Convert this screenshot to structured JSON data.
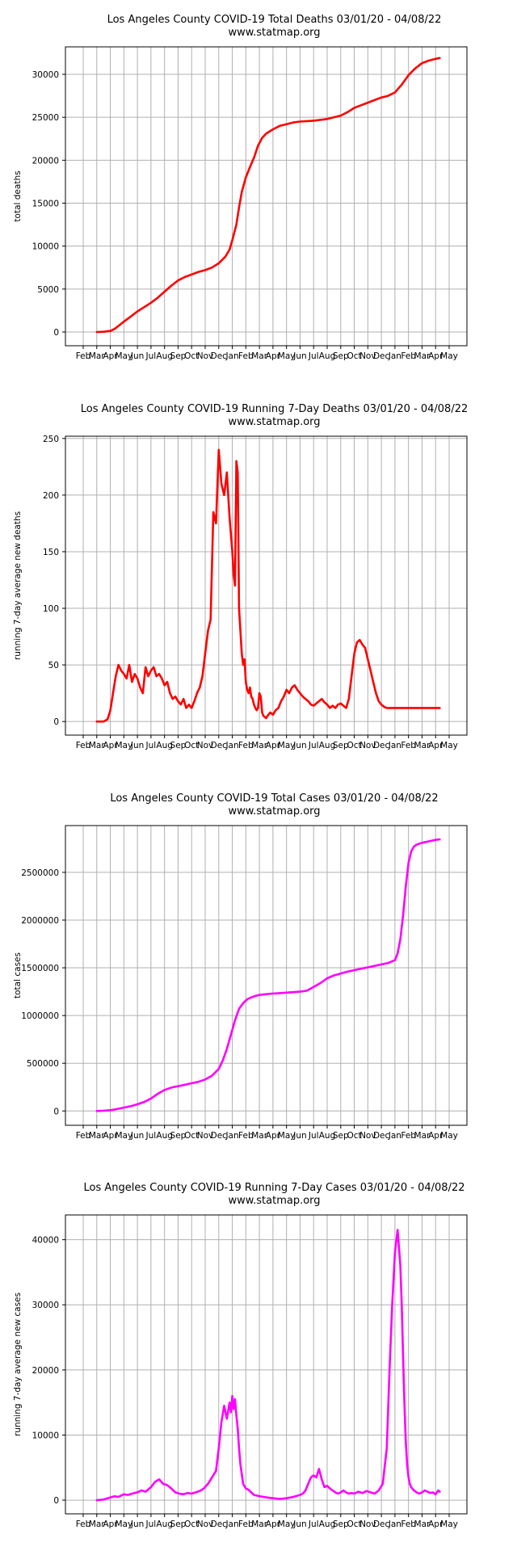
{
  "chart_data": [
    {
      "type": "line",
      "title": "Los Angeles County COVID-19 Total Deaths 03/01/20 - 04/08/22",
      "subtitle": "www.statmap.org",
      "xlabel": "",
      "ylabel": "total deaths",
      "x_tick_labels": [
        "Feb",
        "Mar",
        "Apr",
        "May",
        "Jun",
        "Jul",
        "Aug",
        "Sep",
        "Oct",
        "Nov",
        "Dec",
        "Jan",
        "Feb",
        "Mar",
        "Apr",
        "May",
        "Jun",
        "Jul",
        "Aug",
        "Sep",
        "Oct",
        "Nov",
        "Dec",
        "Jan",
        "Feb",
        "Mar",
        "Apr",
        "May"
      ],
      "x_range_months": [
        0,
        27
      ],
      "yticks": [
        0,
        5000,
        10000,
        15000,
        20000,
        25000,
        30000
      ],
      "ylim": [
        -1600,
        33200
      ],
      "grid": true,
      "color": "#ff0000",
      "series": [
        {
          "x_months": [
            1.0,
            1.5,
            2.0,
            2.3,
            2.6,
            3.0,
            3.5,
            4.0,
            4.5,
            5.0,
            5.5,
            6.0,
            6.5,
            7.0,
            7.5,
            8.0,
            8.5,
            9.0,
            9.5,
            10.0,
            10.5,
            10.8,
            11.0,
            11.3,
            11.5,
            11.7,
            12.0,
            12.3,
            12.6,
            12.9,
            13.2,
            13.5,
            14.0,
            14.5,
            15.0,
            15.5,
            16.0,
            17.0,
            18.0,
            19.0,
            19.5,
            20.0,
            20.5,
            21.0,
            21.5,
            22.0,
            22.5,
            23.0,
            23.5,
            24.0,
            24.5,
            25.0,
            25.5,
            26.0,
            26.3
          ],
          "values": [
            0,
            30,
            120,
            350,
            700,
            1200,
            1800,
            2400,
            2900,
            3400,
            4000,
            4700,
            5400,
            6000,
            6400,
            6700,
            7000,
            7200,
            7500,
            8000,
            8800,
            9600,
            10700,
            12500,
            14500,
            16300,
            18000,
            19200,
            20300,
            21700,
            22600,
            23100,
            23600,
            24000,
            24200,
            24400,
            24500,
            24600,
            24800,
            25200,
            25600,
            26100,
            26400,
            26700,
            27000,
            27300,
            27500,
            27900,
            28800,
            29900,
            30700,
            31300,
            31600,
            31800,
            31900
          ]
        }
      ]
    },
    {
      "type": "line",
      "title": "Los Angeles County COVID-19 Running 7-Day Deaths 03/01/20 - 04/08/22",
      "subtitle": "www.statmap.org",
      "xlabel": "",
      "ylabel": "running 7-day average new deaths",
      "x_tick_labels": [
        "Feb",
        "Mar",
        "Apr",
        "May",
        "Jun",
        "Jul",
        "Aug",
        "Sep",
        "Oct",
        "Nov",
        "Dec",
        "Jan",
        "Feb",
        "Mar",
        "Apr",
        "May",
        "Jun",
        "Jul",
        "Aug",
        "Sep",
        "Oct",
        "Nov",
        "Dec",
        "Jan",
        "Feb",
        "Mar",
        "Apr",
        "May"
      ],
      "x_range_months": [
        0,
        27
      ],
      "yticks": [
        0,
        50,
        100,
        150,
        200,
        250
      ],
      "ylim": [
        -12,
        252
      ],
      "grid": true,
      "color": "#ff0000",
      "series": [
        {
          "x_months": [
            1.0,
            1.5,
            1.8,
            2.0,
            2.2,
            2.4,
            2.6,
            2.8,
            3.0,
            3.2,
            3.4,
            3.6,
            3.8,
            4.0,
            4.2,
            4.4,
            4.6,
            4.8,
            5.0,
            5.2,
            5.4,
            5.6,
            5.8,
            6.0,
            6.2,
            6.4,
            6.6,
            6.8,
            7.0,
            7.2,
            7.4,
            7.6,
            7.8,
            8.0,
            8.2,
            8.4,
            8.6,
            8.8,
            9.0,
            9.2,
            9.4,
            9.6,
            9.8,
            10.0,
            10.2,
            10.4,
            10.6,
            10.8,
            11.0,
            11.1,
            11.2,
            11.3,
            11.4,
            11.5,
            11.6,
            11.7,
            11.8,
            11.9,
            12.0,
            12.1,
            12.2,
            12.3,
            12.4,
            12.5,
            12.6,
            12.7,
            12.8,
            12.9,
            13.0,
            13.1,
            13.2,
            13.3,
            13.4,
            13.5,
            13.6,
            13.8,
            14.0,
            14.2,
            14.4,
            14.6,
            14.8,
            15.0,
            15.2,
            15.4,
            15.6,
            15.8,
            16.0,
            16.2,
            16.4,
            16.6,
            16.8,
            17.0,
            17.2,
            17.4,
            17.6,
            17.8,
            18.0,
            18.2,
            18.4,
            18.6,
            18.8,
            19.0,
            19.2,
            19.4,
            19.6,
            19.8,
            20.0,
            20.2,
            20.4,
            20.6,
            20.8,
            21.0,
            21.2,
            21.4,
            21.6,
            21.8,
            22.0,
            22.2,
            22.4,
            22.6,
            22.8,
            23.0,
            23.2,
            23.4,
            23.6,
            23.8,
            24.0,
            24.2,
            24.4,
            24.6,
            24.8,
            25.0,
            25.2,
            25.4,
            25.6,
            25.8,
            26.0,
            26.2,
            26.3
          ],
          "values": [
            0,
            0,
            2,
            10,
            25,
            40,
            50,
            45,
            42,
            38,
            50,
            35,
            42,
            38,
            30,
            25,
            48,
            40,
            45,
            48,
            40,
            42,
            38,
            32,
            35,
            25,
            20,
            22,
            18,
            15,
            20,
            12,
            15,
            12,
            18,
            25,
            30,
            40,
            60,
            80,
            90,
            185,
            175,
            240,
            210,
            200,
            220,
            180,
            150,
            130,
            120,
            230,
            220,
            100,
            80,
            60,
            50,
            55,
            35,
            28,
            25,
            30,
            22,
            20,
            15,
            12,
            10,
            12,
            25,
            22,
            8,
            5,
            4,
            3,
            5,
            8,
            6,
            10,
            12,
            18,
            22,
            28,
            25,
            30,
            32,
            28,
            25,
            22,
            20,
            18,
            15,
            14,
            16,
            18,
            20,
            17,
            15,
            12,
            14,
            12,
            15,
            16,
            14,
            12,
            20,
            40,
            60,
            70,
            72,
            68,
            65,
            55,
            45,
            35,
            25,
            18,
            15,
            13,
            12,
            12,
            12,
            12,
            12,
            12,
            12,
            12,
            12,
            12,
            12,
            12,
            12,
            12,
            12,
            12,
            12,
            12,
            12,
            12,
            12
          ]
        }
      ]
    },
    {
      "type": "line",
      "title": "Los Angeles County COVID-19 Total Cases 03/01/20 - 04/08/22",
      "subtitle": "www.statmap.org",
      "xlabel": "",
      "ylabel": "total cases",
      "x_tick_labels": [
        "Feb",
        "Mar",
        "Apr",
        "May",
        "Jun",
        "Jul",
        "Aug",
        "Sep",
        "Oct",
        "Nov",
        "Dec",
        "Jan",
        "Feb",
        "Mar",
        "Apr",
        "May",
        "Jun",
        "Jul",
        "Aug",
        "Sep",
        "Oct",
        "Nov",
        "Dec",
        "Jan",
        "Feb",
        "Mar",
        "Apr",
        "May"
      ],
      "x_range_months": [
        0,
        27
      ],
      "yticks": [
        0,
        500000,
        1000000,
        1500000,
        2000000,
        2500000
      ],
      "yticklabels": [
        "0",
        "500000",
        "1000000",
        "1500000",
        "2000000",
        "2500000"
      ],
      "ylim": [
        -150000,
        2990000
      ],
      "grid": true,
      "color": "#ff00ff",
      "series": [
        {
          "x_months": [
            1.0,
            1.5,
            2.0,
            2.5,
            3.0,
            3.5,
            4.0,
            4.5,
            5.0,
            5.5,
            6.0,
            6.5,
            7.0,
            7.5,
            8.0,
            8.5,
            9.0,
            9.5,
            10.0,
            10.3,
            10.6,
            10.9,
            11.2,
            11.5,
            11.8,
            12.1,
            12.4,
            12.7,
            13.0,
            13.3,
            13.6,
            14.0,
            14.5,
            15.0,
            15.5,
            16.0,
            16.5,
            17.0,
            17.5,
            18.0,
            18.5,
            19.0,
            19.5,
            20.0,
            20.5,
            21.0,
            21.5,
            22.0,
            22.5,
            23.0,
            23.2,
            23.4,
            23.6,
            23.8,
            24.0,
            24.2,
            24.4,
            24.6,
            24.8,
            25.0,
            25.5,
            26.0,
            26.3
          ],
          "values": [
            0,
            2000,
            8000,
            20000,
            35000,
            50000,
            70000,
            95000,
            130000,
            180000,
            220000,
            245000,
            260000,
            275000,
            290000,
            305000,
            330000,
            370000,
            440000,
            530000,
            650000,
            800000,
            950000,
            1070000,
            1130000,
            1170000,
            1190000,
            1205000,
            1215000,
            1220000,
            1225000,
            1230000,
            1235000,
            1240000,
            1245000,
            1250000,
            1260000,
            1300000,
            1340000,
            1390000,
            1420000,
            1440000,
            1460000,
            1475000,
            1490000,
            1505000,
            1520000,
            1535000,
            1550000,
            1580000,
            1650000,
            1800000,
            2050000,
            2350000,
            2600000,
            2720000,
            2770000,
            2790000,
            2800000,
            2810000,
            2825000,
            2840000,
            2845000
          ]
        }
      ]
    },
    {
      "type": "line",
      "title": "Los Angeles County COVID-19 Running 7-Day Cases 03/01/20 - 04/08/22",
      "subtitle": "www.statmap.org",
      "xlabel": "",
      "ylabel": "running 7-day average new cases",
      "x_tick_labels": [
        "Feb",
        "Mar",
        "Apr",
        "May",
        "Jun",
        "Jul",
        "Aug",
        "Sep",
        "Oct",
        "Nov",
        "Dec",
        "Jan",
        "Feb",
        "Mar",
        "Apr",
        "May",
        "Jun",
        "Jul",
        "Aug",
        "Sep",
        "Oct",
        "Nov",
        "Dec",
        "Jan",
        "Feb",
        "Mar",
        "Apr",
        "May"
      ],
      "x_range_months": [
        0,
        27
      ],
      "yticks": [
        0,
        10000,
        20000,
        30000,
        40000
      ],
      "ylim": [
        -2100,
        43800
      ],
      "grid": true,
      "color": "#ff00ff",
      "series": [
        {
          "x_months": [
            1.0,
            1.5,
            2.0,
            2.3,
            2.6,
            3.0,
            3.3,
            3.6,
            4.0,
            4.3,
            4.6,
            5.0,
            5.3,
            5.6,
            5.9,
            6.2,
            6.5,
            6.8,
            7.1,
            7.4,
            7.7,
            8.0,
            8.3,
            8.6,
            8.9,
            9.2,
            9.5,
            9.8,
            10.0,
            10.2,
            10.4,
            10.6,
            10.8,
            10.9,
            11.0,
            11.1,
            11.2,
            11.3,
            11.4,
            11.5,
            11.6,
            11.7,
            11.8,
            12.0,
            12.2,
            12.4,
            12.6,
            12.8,
            13.0,
            13.3,
            13.6,
            14.0,
            14.5,
            15.0,
            15.5,
            16.0,
            16.2,
            16.4,
            16.6,
            16.8,
            17.0,
            17.2,
            17.4,
            17.6,
            17.8,
            18.0,
            18.2,
            18.4,
            18.6,
            18.8,
            19.0,
            19.2,
            19.4,
            19.6,
            19.8,
            20.0,
            20.3,
            20.6,
            20.9,
            21.2,
            21.5,
            21.8,
            22.1,
            22.4,
            22.6,
            22.8,
            23.0,
            23.2,
            23.4,
            23.5,
            23.6,
            23.7,
            23.8,
            23.9,
            24.0,
            24.1,
            24.2,
            24.4,
            24.6,
            24.8,
            25.0,
            25.2,
            25.4,
            25.6,
            25.8,
            26.0,
            26.2,
            26.3
          ],
          "values": [
            0,
            100,
            400,
            600,
            500,
            900,
            800,
            1000,
            1200,
            1500,
            1300,
            2000,
            2800,
            3200,
            2500,
            2300,
            1800,
            1200,
            1000,
            900,
            1100,
            1000,
            1200,
            1400,
            1800,
            2500,
            3500,
            4500,
            8000,
            12000,
            14500,
            12500,
            15000,
            13500,
            16000,
            14000,
            15500,
            13000,
            11000,
            8000,
            5500,
            4000,
            2500,
            1800,
            1600,
            1200,
            800,
            700,
            600,
            500,
            400,
            300,
            200,
            300,
            500,
            800,
            1000,
            1500,
            2500,
            3500,
            3800,
            3500,
            4800,
            3200,
            2000,
            2200,
            1800,
            1500,
            1200,
            1000,
            1200,
            1500,
            1200,
            1000,
            1100,
            1000,
            1300,
            1100,
            1400,
            1200,
            1000,
            1500,
            2500,
            8000,
            20000,
            30000,
            38000,
            41500,
            36000,
            30000,
            22000,
            15000,
            9000,
            5500,
            3500,
            2500,
            2000,
            1500,
            1200,
            1000,
            1200,
            1500,
            1300,
            1100,
            1200,
            900,
            1500,
            1300
          ]
        }
      ]
    }
  ]
}
